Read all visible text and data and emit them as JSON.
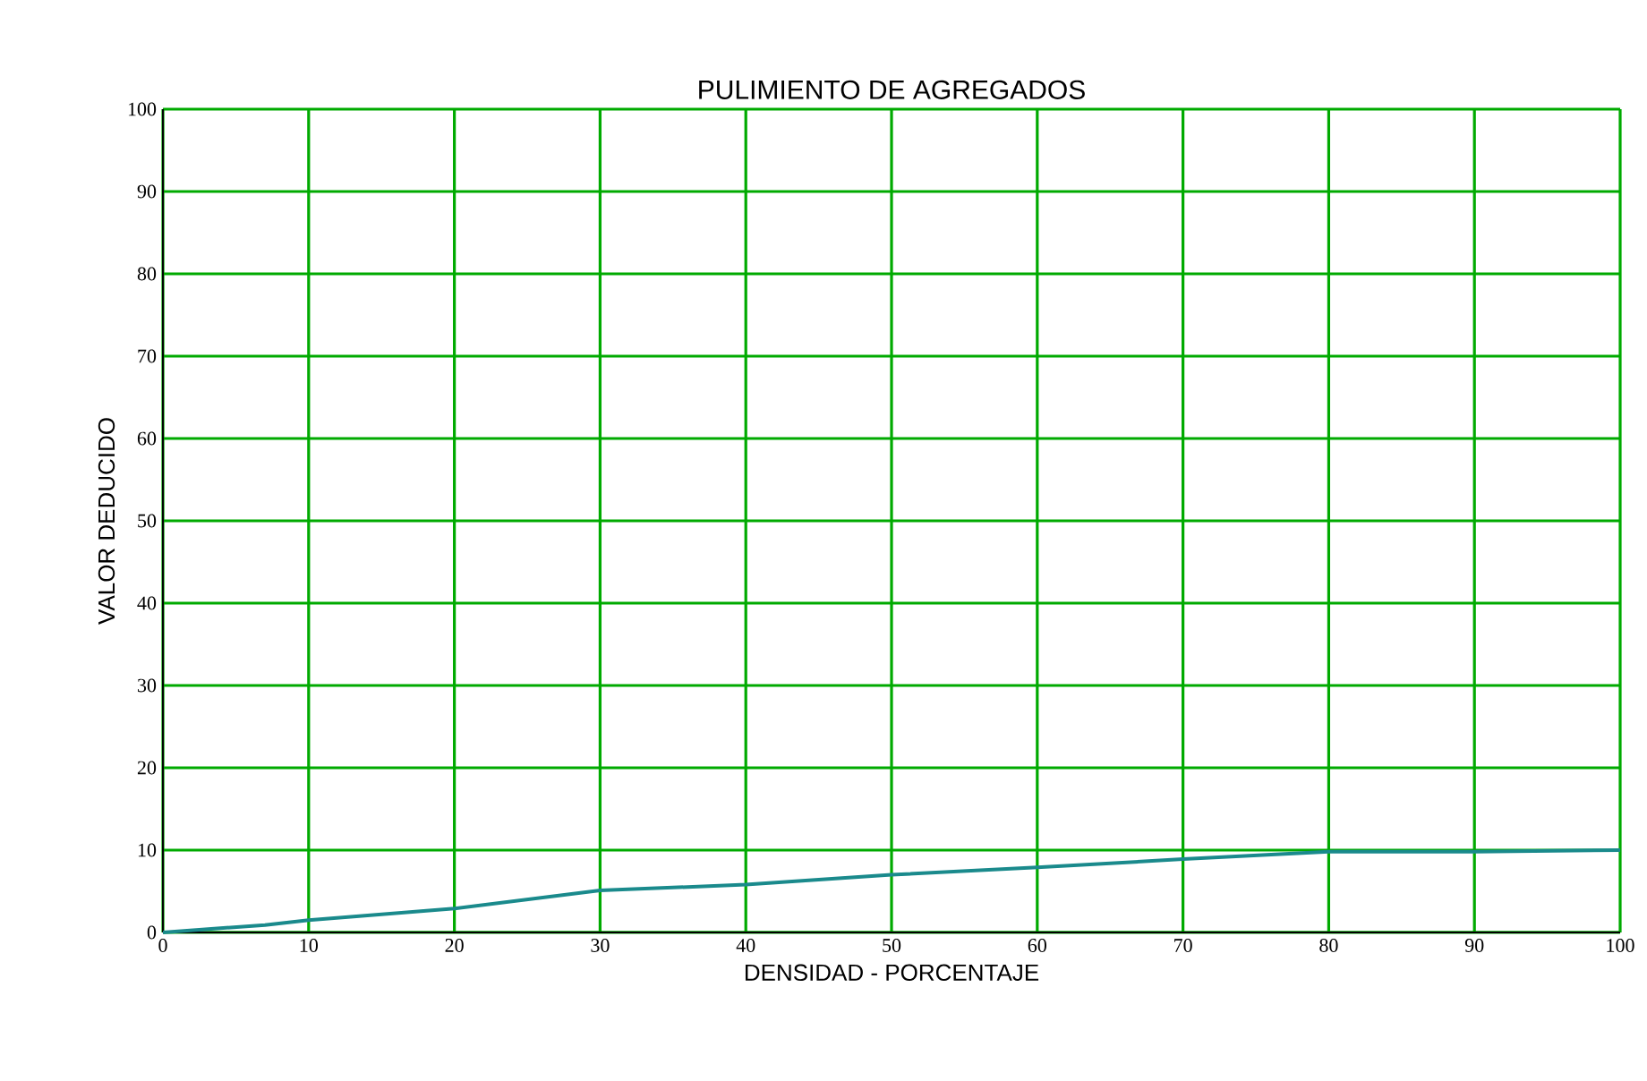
{
  "chart_data": {
    "type": "line",
    "title": "PULIMIENTO DE AGREGADOS",
    "xlabel": "DENSIDAD - PORCENTAJE",
    "ylabel": "VALOR DEDUCIDO",
    "series": [
      {
        "color": "#1a8a8c",
        "x": [
          0,
          7,
          10,
          20,
          30,
          40,
          50,
          60,
          70,
          80,
          90,
          100
        ],
        "values": [
          0,
          0.9,
          1.5,
          2.9,
          5.1,
          5.8,
          7.0,
          7.9,
          8.9,
          9.8,
          9.8,
          10.0
        ]
      }
    ],
    "xlim": [
      0,
      100
    ],
    "ylim": [
      0,
      100
    ],
    "xticks": [
      0,
      10,
      20,
      30,
      40,
      50,
      60,
      70,
      80,
      90,
      100
    ],
    "yticks": [
      0,
      10,
      20,
      30,
      40,
      50,
      60,
      70,
      80,
      90,
      100
    ],
    "grid": true,
    "marker": "none",
    "line_style": "solid"
  }
}
